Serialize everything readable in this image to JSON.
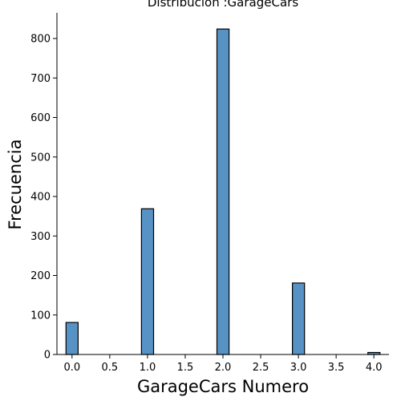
{
  "chart_data": {
    "type": "bar",
    "title": "Distribución :GarageCars",
    "xlabel": "GarageCars Numero",
    "ylabel": "Frecuencia",
    "xlim": [
      -0.2,
      4.2
    ],
    "ylim": [
      0,
      865
    ],
    "xticks": [
      0.0,
      0.5,
      1.0,
      1.5,
      2.0,
      2.5,
      3.0,
      3.5,
      4.0
    ],
    "xtick_labels": [
      "0.0",
      "0.5",
      "1.0",
      "1.5",
      "2.0",
      "2.5",
      "3.0",
      "3.5",
      "4.0"
    ],
    "yticks": [
      0,
      100,
      200,
      300,
      400,
      500,
      600,
      700,
      800
    ],
    "ytick_labels": [
      "0",
      "100",
      "200",
      "300",
      "400",
      "500",
      "600",
      "700",
      "800"
    ],
    "bin_width": 0.16,
    "x": [
      0,
      1,
      2,
      3,
      4
    ],
    "values": [
      81,
      369,
      824,
      181,
      5
    ],
    "bar_color": "#5792c4",
    "edge_color": "#000000",
    "grid": false
  }
}
